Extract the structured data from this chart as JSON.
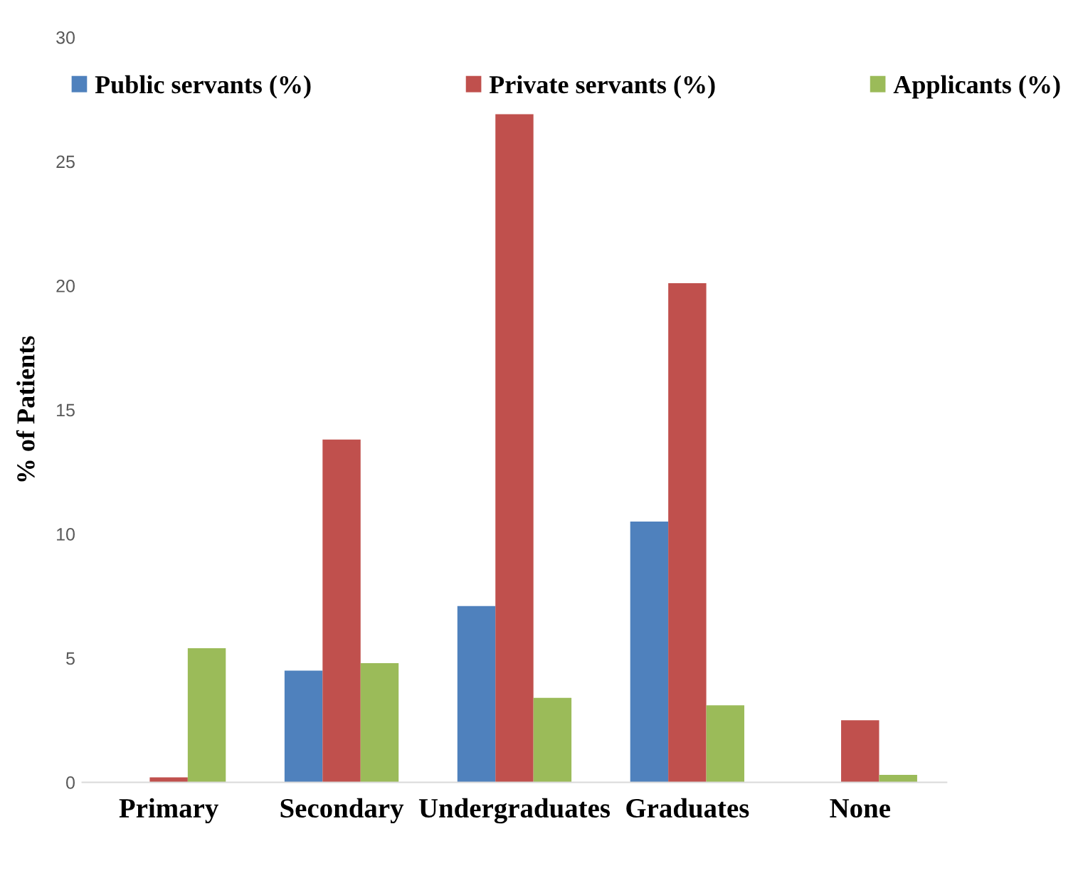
{
  "chart_data": {
    "type": "bar",
    "ylabel": "% of Patients",
    "categories": [
      "Primary",
      "Secondary",
      "Undergraduates",
      "Graduates",
      "None"
    ],
    "series": [
      {
        "name": "Public servants (%)",
        "color": "#4f81bd",
        "values": [
          0,
          4.5,
          7.1,
          10.5,
          0
        ]
      },
      {
        "name": "Private servants (%)",
        "color": "#c0504d",
        "values": [
          0.2,
          13.8,
          26.9,
          20.1,
          2.5
        ]
      },
      {
        "name": "Applicants (%)",
        "color": "#9bbb59",
        "values": [
          5.4,
          4.8,
          3.4,
          3.1,
          0.3
        ]
      }
    ],
    "ylim": [
      0,
      30
    ],
    "yticks": [
      0,
      5,
      10,
      15,
      20,
      25,
      30
    ],
    "grid": false,
    "legend": "top"
  }
}
